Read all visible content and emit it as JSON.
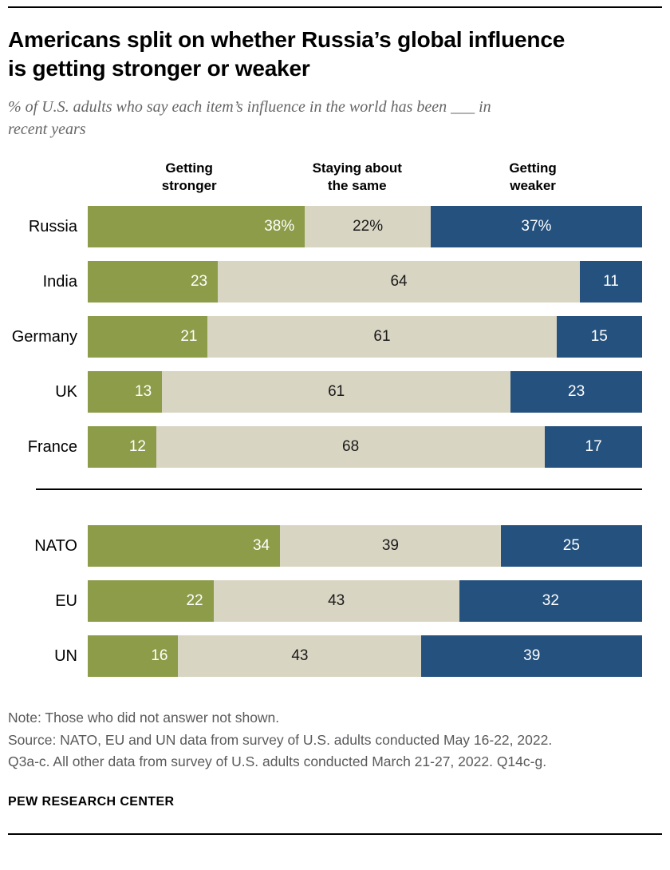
{
  "chart_data": {
    "type": "bar",
    "stacked": true,
    "orientation": "horizontal",
    "title": "Americans split on whether Russia’s global influence is getting stronger or weaker",
    "title_lines": [
      "Americans split on whether Russia’s global influence",
      "is getting stronger or weaker"
    ],
    "subtitle": "% of U.S. adults who say each item’s influence in the world has been ___ in recent years",
    "subtitle_lines": [
      "% of U.S. adults who say each item’s influence in the world has been ___ in",
      "recent years"
    ],
    "xlim": [
      0,
      100
    ],
    "units": "percent",
    "legend_position": "top",
    "series": [
      {
        "key": "stronger",
        "label": "Getting stronger",
        "color": "#8c9c49",
        "text_color": "#ffffff"
      },
      {
        "key": "same",
        "label": "Staying about the same",
        "color": "#d9d5c3",
        "text_color": "#1a1a1a"
      },
      {
        "key": "weaker",
        "label": "Getting weaker",
        "color": "#24517e",
        "text_color": "#ffffff"
      }
    ],
    "groups": [
      {
        "rows": [
          {
            "label": "Russia",
            "values": [
              38,
              22,
              37
            ],
            "display": [
              "38%",
              "22%",
              "37%"
            ]
          },
          {
            "label": "India",
            "values": [
              23,
              64,
              11
            ],
            "display": [
              "23",
              "64",
              "11"
            ]
          },
          {
            "label": "Germany",
            "values": [
              21,
              61,
              15
            ],
            "display": [
              "21",
              "61",
              "15"
            ]
          },
          {
            "label": "UK",
            "values": [
              13,
              61,
              23
            ],
            "display": [
              "13",
              "61",
              "23"
            ]
          },
          {
            "label": "France",
            "values": [
              12,
              68,
              17
            ],
            "display": [
              "12",
              "68",
              "17"
            ]
          }
        ]
      },
      {
        "rows": [
          {
            "label": "NATO",
            "values": [
              34,
              39,
              25
            ],
            "display": [
              "34",
              "39",
              "25"
            ]
          },
          {
            "label": "EU",
            "values": [
              22,
              43,
              32
            ],
            "display": [
              "22",
              "43",
              "32"
            ]
          },
          {
            "label": "UN",
            "values": [
              16,
              43,
              39
            ],
            "display": [
              "16",
              "43",
              "39"
            ]
          }
        ]
      }
    ]
  },
  "footer": {
    "note": "Note: Those who did not answer not shown.",
    "source_line1": "Source: NATO, EU and UN data from survey of U.S. adults conducted May 16-22, 2022.",
    "source_line2": "Q3a-c. All other data from survey of U.S. adults conducted March 21-27, 2022. Q14c-g.",
    "brand": "PEW RESEARCH CENTER"
  }
}
